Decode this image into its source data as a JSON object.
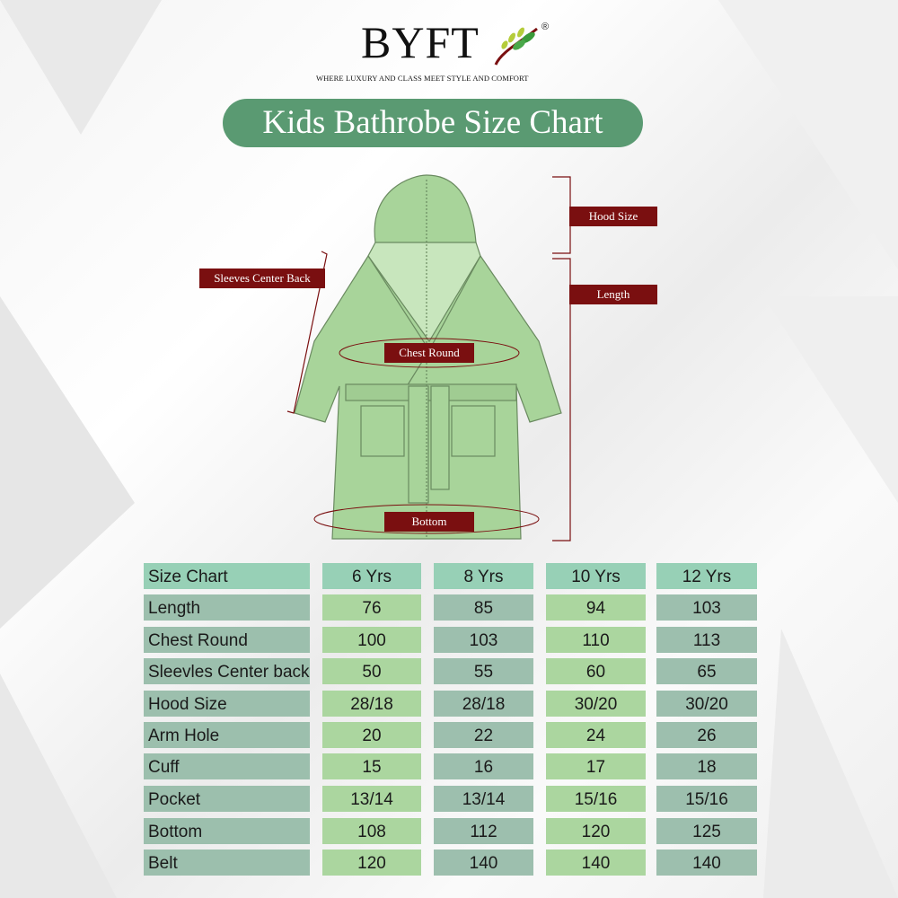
{
  "brand": {
    "name": "BYFT",
    "registered": "®",
    "tagline": "WHERE LUXURY AND CLASS MEET STYLE AND COMFORT"
  },
  "title": "Kids Bathrobe Size Chart",
  "diagram_labels": {
    "hood": "Hood Size",
    "length": "Length",
    "sleeves": "Sleeves Center Back",
    "chest": "Chest Round",
    "bottom": "Bottom"
  },
  "colors": {
    "title_bg": "#5a9a72",
    "tag_bg": "#7a0f10",
    "robe": "#a8d49a",
    "header_row": "#97d0b6",
    "label_col": "#9cbfad",
    "col_light": "#abd69f",
    "col_gray": "#9dbfae"
  },
  "table": {
    "headers": [
      "Size Chart",
      "6 Yrs",
      "8 Yrs",
      "10 Yrs",
      "12 Yrs"
    ],
    "rows": [
      [
        "Length",
        "76",
        "85",
        "94",
        "103"
      ],
      [
        "Chest Round",
        "100",
        "103",
        "110",
        "113"
      ],
      [
        "Sleevles Center back",
        "50",
        "55",
        "60",
        "65"
      ],
      [
        "Hood Size",
        "28/18",
        "28/18",
        "30/20",
        "30/20"
      ],
      [
        "Arm Hole",
        "20",
        "22",
        "24",
        "26"
      ],
      [
        "Cuff",
        "15",
        "16",
        "17",
        "18"
      ],
      [
        "Pocket",
        "13/14",
        "13/14",
        "15/16",
        "15/16"
      ],
      [
        "Bottom",
        "108",
        "112",
        "120",
        "125"
      ],
      [
        "Belt",
        "120",
        "140",
        "140",
        "140"
      ]
    ]
  }
}
